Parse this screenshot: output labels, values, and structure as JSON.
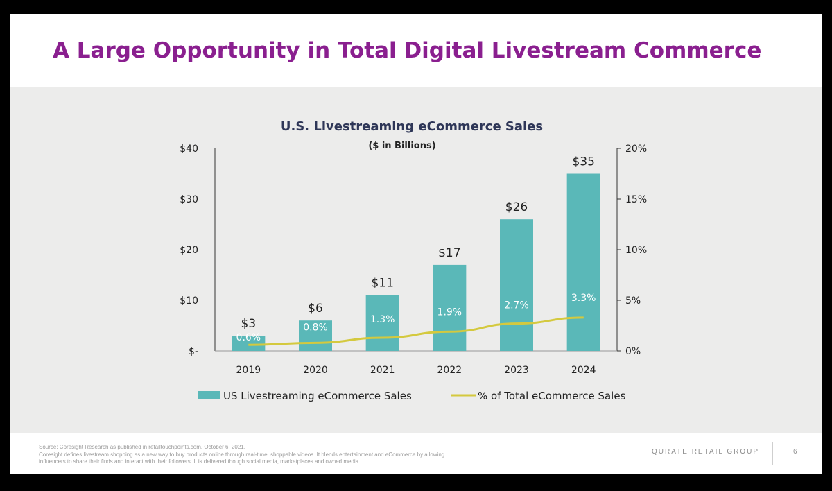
{
  "slide": {
    "title": "A Large Opportunity in Total Digital Livestream Commerce",
    "page_number": "6",
    "brand": "QURATE RETAIL GROUP",
    "footnote": [
      "Source: Coresight Research as published in retailtouchpoints.com, October 6, 2021.",
      "Coresight defines livestream shopping as a new way to buy products online through real-time, shoppable videos. It blends entertainment and eCommerce by allowing",
      "influencers to share their finds and interact with their followers. It is delivered though social media, marketplaces and owned media."
    ]
  },
  "chart_data": {
    "type": "bar",
    "title": "U.S. Livestreaming eCommerce Sales",
    "subtitle": "($ in Billions)",
    "categories": [
      "2019",
      "2020",
      "2021",
      "2022",
      "2023",
      "2024"
    ],
    "series": [
      {
        "name": "US Livestreaming eCommerce Sales",
        "type": "bar",
        "axis": "left",
        "values": [
          3,
          6,
          11,
          17,
          26,
          35
        ],
        "labels": [
          "$3",
          "$6",
          "$11",
          "$17",
          "$26",
          "$35"
        ],
        "color": "#5ab8b8"
      },
      {
        "name": "% of Total eCommerce Sales",
        "type": "line",
        "axis": "right",
        "values": [
          0.6,
          0.8,
          1.3,
          1.9,
          2.7,
          3.3
        ],
        "labels": [
          "0.6%",
          "0.8%",
          "1.3%",
          "1.9%",
          "2.7%",
          "3.3%"
        ],
        "color": "#d4c93e"
      }
    ],
    "left_axis": {
      "ylim": [
        0,
        40
      ],
      "ticks": [
        0,
        10,
        20,
        30,
        40
      ],
      "tick_labels": [
        "$-",
        "$10",
        "$20",
        "$30",
        "$40"
      ]
    },
    "right_axis": {
      "ylim": [
        0,
        20
      ],
      "ticks": [
        0,
        5,
        10,
        15,
        20
      ],
      "tick_labels": [
        "0%",
        "5%",
        "10%",
        "15%",
        "20%"
      ]
    },
    "grid": false,
    "legend_position": "bottom",
    "colors": {
      "title": "#2e3657",
      "text": "#222222",
      "bar_label_inside": "#ffffff"
    }
  }
}
